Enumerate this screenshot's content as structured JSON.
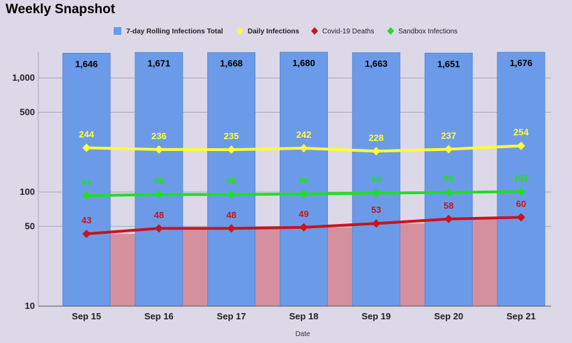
{
  "colors": {
    "background": "#dcd8e8",
    "bars": "#6b9be8",
    "filler": "#d4909e",
    "daily": "#ffff33",
    "deaths": "#c8141e",
    "sandbox": "#22dd22",
    "grid": "#a9a4b8"
  },
  "chart_data": {
    "type": "bar",
    "title": "Weekly Snapshot",
    "xlabel": "Date",
    "ylabel": "",
    "y_scale": "log",
    "ylim": [
      10,
      1800
    ],
    "y_ticks": [
      10,
      50,
      100,
      500,
      1000
    ],
    "y_tick_labels": [
      "10",
      "50",
      "100",
      "500",
      "1,000"
    ],
    "categories": [
      "Sep 15",
      "Sep 16",
      "Sep 17",
      "Sep 18",
      "Sep 19",
      "Sep 20",
      "Sep 21"
    ],
    "legend_position": "top",
    "grid": true,
    "bar_series": {
      "name": "7-day Rolling Infections Total",
      "values": [
        1646,
        1671,
        1668,
        1680,
        1663,
        1651,
        1676
      ],
      "labels": [
        "1,646",
        "1,671",
        "1,668",
        "1,680",
        "1,663",
        "1,651",
        "1,676"
      ]
    },
    "line_series": [
      {
        "name": "Daily Infections",
        "marker": "diamond",
        "values": [
          244,
          236,
          235,
          242,
          228,
          237,
          254
        ],
        "labels": [
          "244",
          "236",
          "235",
          "242",
          "228",
          "237",
          "254"
        ]
      },
      {
        "name": "Covid-19 Deaths",
        "marker": "diamond",
        "values": [
          43,
          48,
          48,
          49,
          53,
          58,
          60
        ],
        "labels": [
          "43",
          "48",
          "48",
          "49",
          "53",
          "58",
          "60"
        ]
      },
      {
        "name": "Sandbox Infections",
        "marker": "diamond",
        "values": [
          93,
          95,
          95,
          96,
          98,
          99,
          101
        ],
        "labels": [
          "93",
          "95",
          "95",
          "96",
          "98",
          "99",
          "101"
        ]
      }
    ]
  }
}
